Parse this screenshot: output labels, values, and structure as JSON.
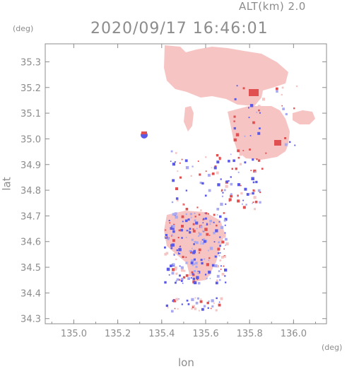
{
  "header": {
    "altitude_label": "ALT(km)  2.0",
    "datetime": "2020/09/17  16:46:01"
  },
  "axes": {
    "x_label": "lon",
    "y_label": "lat",
    "x_unit": "(deg)",
    "y_unit": "(deg)",
    "x_ticks": [
      "135.0",
      "135.2",
      "135.4",
      "135.6",
      "135.8",
      "136.0"
    ],
    "y_ticks": [
      "35.3",
      "35.2",
      "35.1",
      "35.0",
      "34.9",
      "34.8",
      "34.7",
      "34.6",
      "34.5",
      "34.4",
      "34.3"
    ]
  },
  "colors": {
    "axis": "#8c8c8c",
    "positive_fill": "#f7c4c4",
    "positive_strong": "#e05050",
    "negative": "#5a5ae6"
  },
  "chart_data": {
    "type": "heatmap",
    "xlim": [
      134.87,
      136.15
    ],
    "ylim": [
      34.28,
      35.37
    ],
    "grid": false
  }
}
